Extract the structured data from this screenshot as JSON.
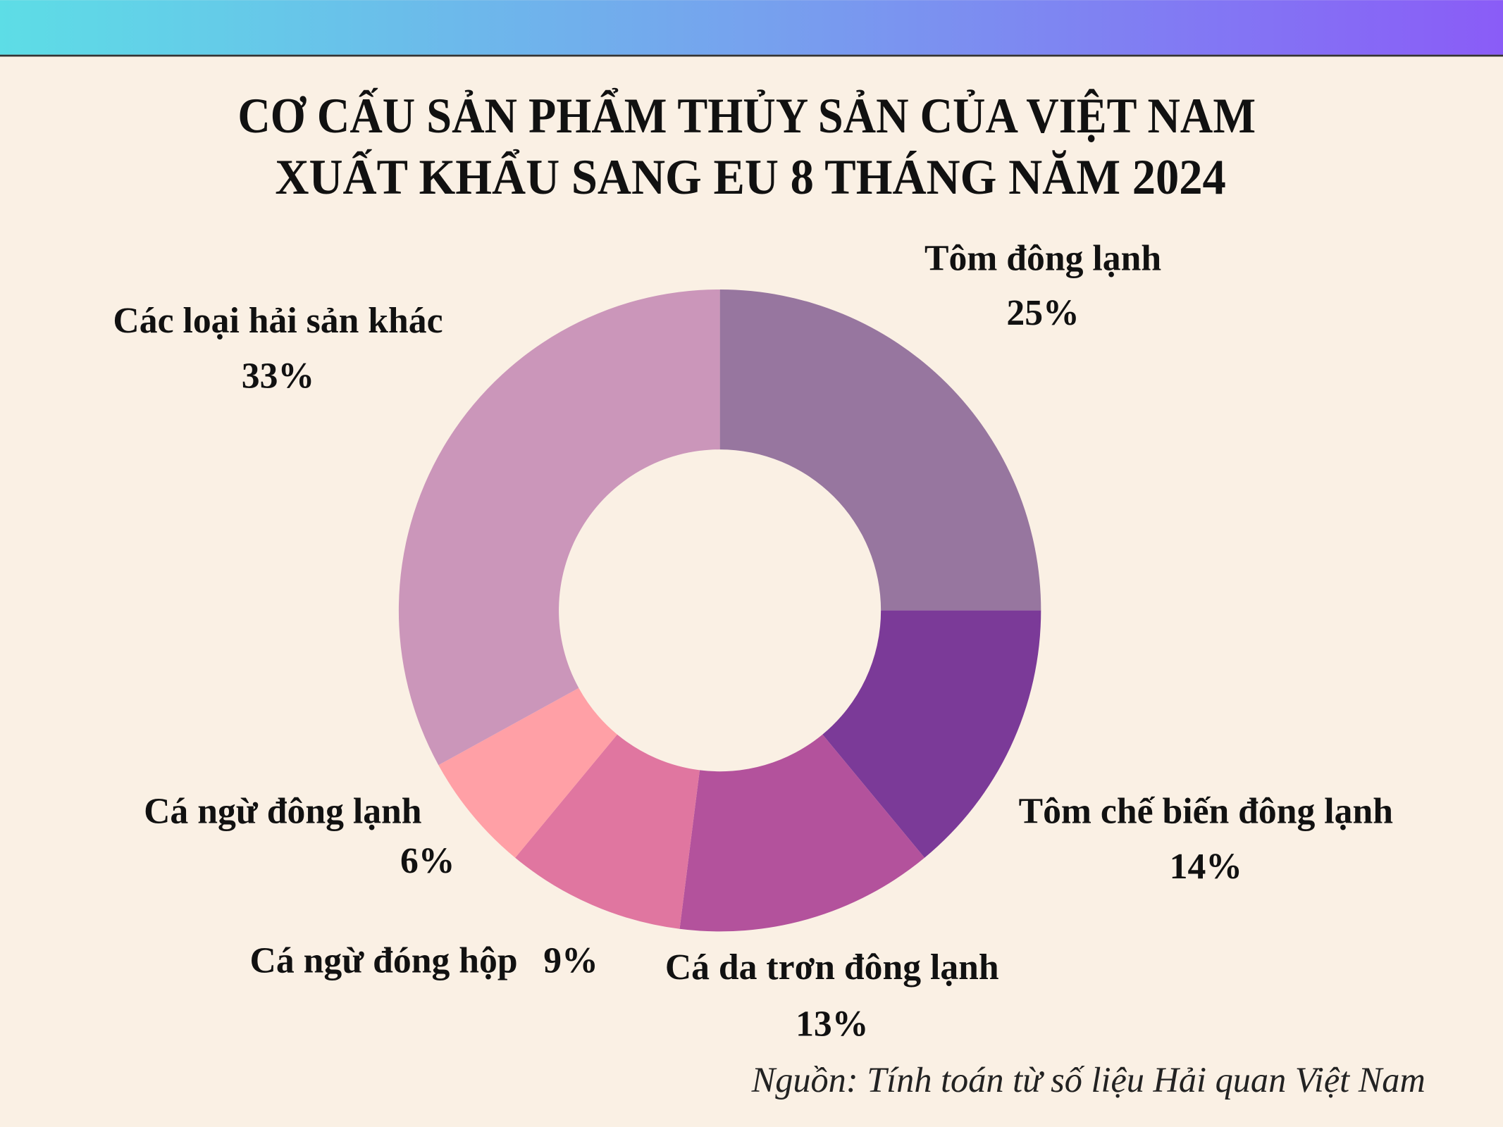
{
  "chart_data": {
    "type": "donut",
    "title": [
      "CƠ CẤU SẢN PHẨM THỦY SẢN CỦA VIỆT NAM",
      "XUẤT KHẨU SANG EU 8 THÁNG NĂM 2024"
    ],
    "categories": [
      "Tôm đông lạnh",
      "Tôm chế biến đông lạnh",
      "Cá da trơn đông lạnh",
      "Cá ngừ đóng hộp",
      "Cá ngừ đông lạnh",
      "Các loại hải sản khác"
    ],
    "values": [
      25,
      14,
      13,
      9,
      6,
      33
    ],
    "value_labels": [
      "25%",
      "14%",
      "13%",
      "9%",
      "6%",
      "33%"
    ],
    "colors": [
      "#97769f",
      "#7b3a98",
      "#b3529c",
      "#e076a0",
      "#ffa0a6",
      "#cb96ba"
    ],
    "source": "Nguồn: Tính toán từ số liệu Hải quan Việt Nam"
  }
}
